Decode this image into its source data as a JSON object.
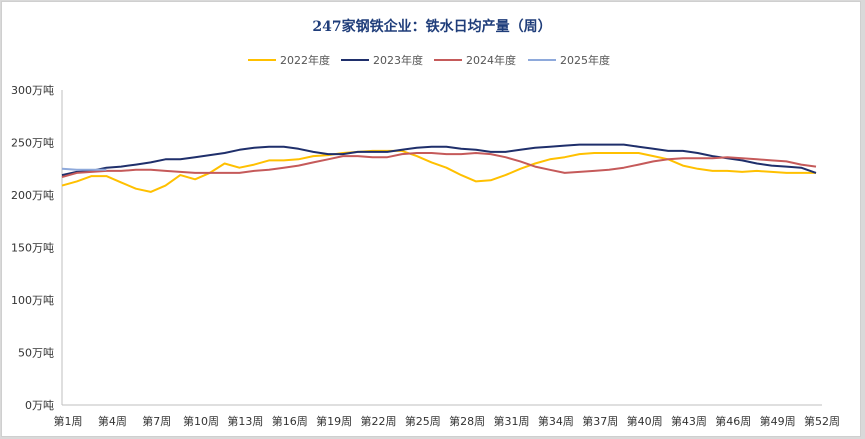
{
  "chart_data": {
    "type": "line",
    "title": "247家钢铁企业：铁水日均产量（周）",
    "y_unit": "万吨",
    "ylim": [
      0,
      300
    ],
    "y_ticks": [
      "0万吨",
      "50万吨",
      "100万吨",
      "150万吨",
      "200万吨",
      "250万吨",
      "300万吨"
    ],
    "x_tick_labels": [
      "第1周",
      "第4周",
      "第7周",
      "第10周",
      "第13周",
      "第16周",
      "第19周",
      "第22周",
      "第25周",
      "第28周",
      "第31周",
      "第34周",
      "第37周",
      "第40周",
      "第43周",
      "第46周",
      "第49周",
      "第52周"
    ],
    "x_weeks": [
      1,
      2,
      3,
      4,
      5,
      6,
      7,
      8,
      9,
      10,
      11,
      12,
      13,
      14,
      15,
      16,
      17,
      18,
      19,
      20,
      21,
      22,
      23,
      24,
      25,
      26,
      27,
      28,
      29,
      30,
      31,
      32,
      33,
      34,
      35,
      36,
      37,
      38,
      39,
      40,
      41,
      42,
      43,
      44,
      45,
      46,
      47,
      48,
      49,
      50,
      51,
      52
    ],
    "legend_position": "top",
    "grid": false,
    "series": [
      {
        "name": "2022年度",
        "color": "#FFC000",
        "values": [
          209,
          213,
          218,
          218,
          212,
          206,
          203,
          209,
          219,
          215,
          221,
          230,
          226,
          229,
          233,
          233,
          234,
          237,
          238,
          240,
          241,
          242,
          242,
          242,
          237,
          231,
          226,
          219,
          213,
          214,
          219,
          225,
          230,
          234,
          236,
          239,
          240,
          240,
          240,
          240,
          237,
          234,
          228,
          225,
          223,
          223,
          222,
          223,
          222,
          221,
          221,
          221
        ]
      },
      {
        "name": "2023年度",
        "color": "#1F2F6B",
        "values": [
          219,
          222,
          223,
          226,
          227,
          229,
          231,
          234,
          234,
          236,
          238,
          240,
          243,
          245,
          246,
          246,
          244,
          241,
          239,
          239,
          241,
          241,
          241,
          243,
          245,
          246,
          246,
          244,
          243,
          241,
          241,
          243,
          245,
          246,
          247,
          248,
          248,
          248,
          248,
          246,
          244,
          242,
          242,
          240,
          237,
          235,
          233,
          230,
          228,
          227,
          226,
          221
        ]
      },
      {
        "name": "2024年度",
        "color": "#C55A5A",
        "values": [
          217,
          221,
          222,
          223,
          223,
          224,
          224,
          223,
          222,
          221,
          221,
          221,
          221,
          223,
          224,
          226,
          228,
          231,
          234,
          237,
          237,
          236,
          236,
          239,
          240,
          240,
          239,
          239,
          240,
          239,
          236,
          232,
          227,
          224,
          221,
          222,
          223,
          224,
          226,
          229,
          232,
          234,
          235,
          235,
          235,
          236,
          235,
          234,
          233,
          232,
          229,
          227
        ]
      },
      {
        "name": "2025年度",
        "color": "#8EA9DB",
        "values": [
          225,
          224,
          224,
          224,
          null,
          null,
          null,
          null,
          null,
          null,
          null,
          null,
          null,
          null,
          null,
          null,
          null,
          null,
          null,
          null,
          null,
          null,
          null,
          null,
          null,
          null,
          null,
          null,
          null,
          null,
          null,
          null,
          null,
          null,
          null,
          null,
          null,
          null,
          null,
          null,
          null,
          null,
          null,
          null,
          null,
          null,
          null,
          null,
          null,
          null,
          null,
          null
        ]
      }
    ]
  }
}
